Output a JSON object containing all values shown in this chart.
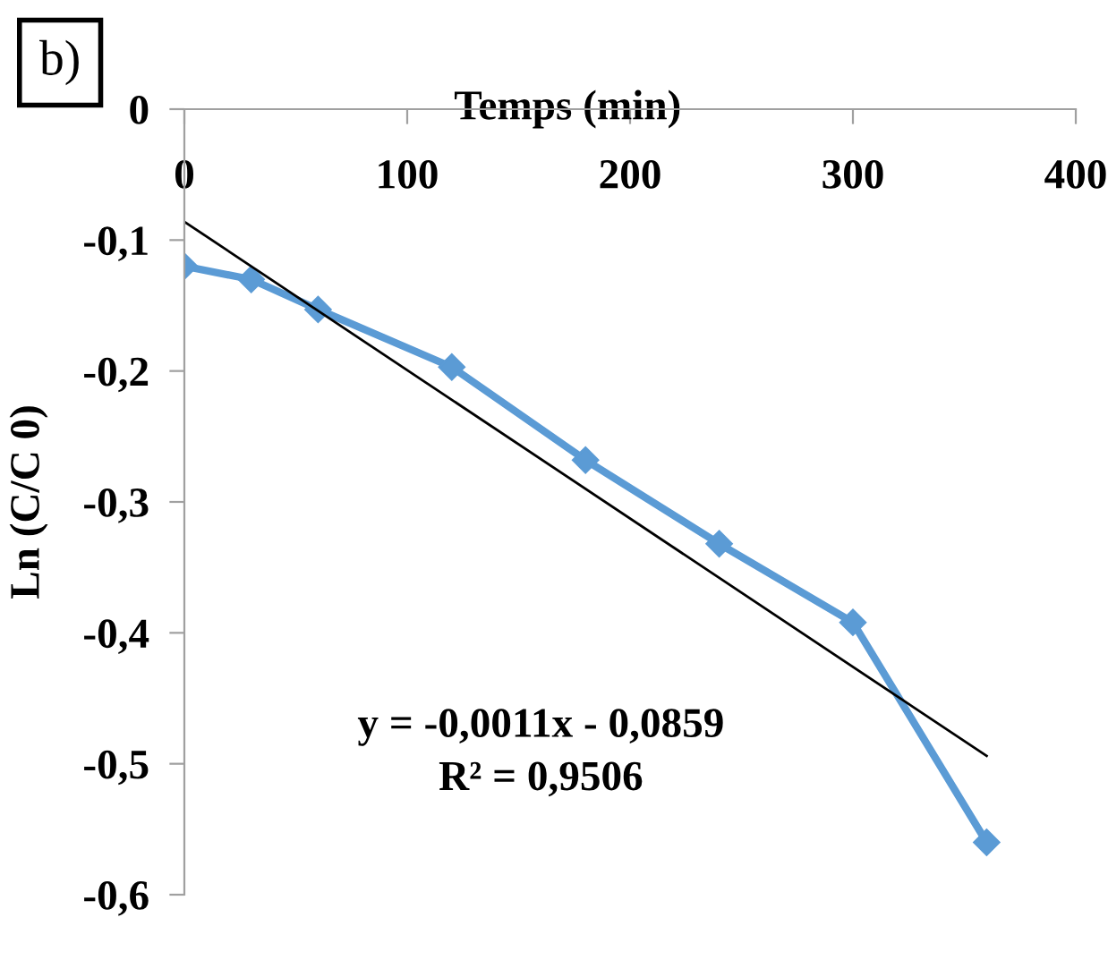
{
  "chart_data": {
    "type": "line",
    "xlabel": "Temps (min)",
    "ylabel": "Ln (C/C 0)",
    "xlim": [
      0,
      400
    ],
    "ylim": [
      -0.6,
      0
    ],
    "xticks": [
      0,
      100,
      200,
      300,
      400
    ],
    "yticks": [
      {
        "value": 0,
        "label": "0"
      },
      {
        "value": -0.1,
        "label": "-0,1"
      },
      {
        "value": -0.2,
        "label": "-0,2"
      },
      {
        "value": -0.3,
        "label": "-0,3"
      },
      {
        "value": -0.4,
        "label": "-0,4"
      },
      {
        "value": -0.5,
        "label": "-0,5"
      },
      {
        "value": -0.6,
        "label": "-0,6"
      }
    ],
    "x": [
      0,
      30,
      60,
      120,
      180,
      240,
      300,
      360
    ],
    "series": [
      {
        "color": "#5b9bd5",
        "marker": "diamond",
        "values": [
          -0.12,
          -0.13,
          -0.153,
          -0.197,
          -0.268,
          -0.332,
          -0.392,
          -0.56
        ]
      },
      {
        "color": "#000000",
        "marker": "none",
        "x": [
          0,
          360
        ],
        "values": [
          -0.086,
          -0.494
        ]
      }
    ],
    "annotations": [
      "y = -0,0011x - 0,0859\nR² = 0,9506",
      "b)"
    ],
    "grid": false,
    "legend": false
  }
}
